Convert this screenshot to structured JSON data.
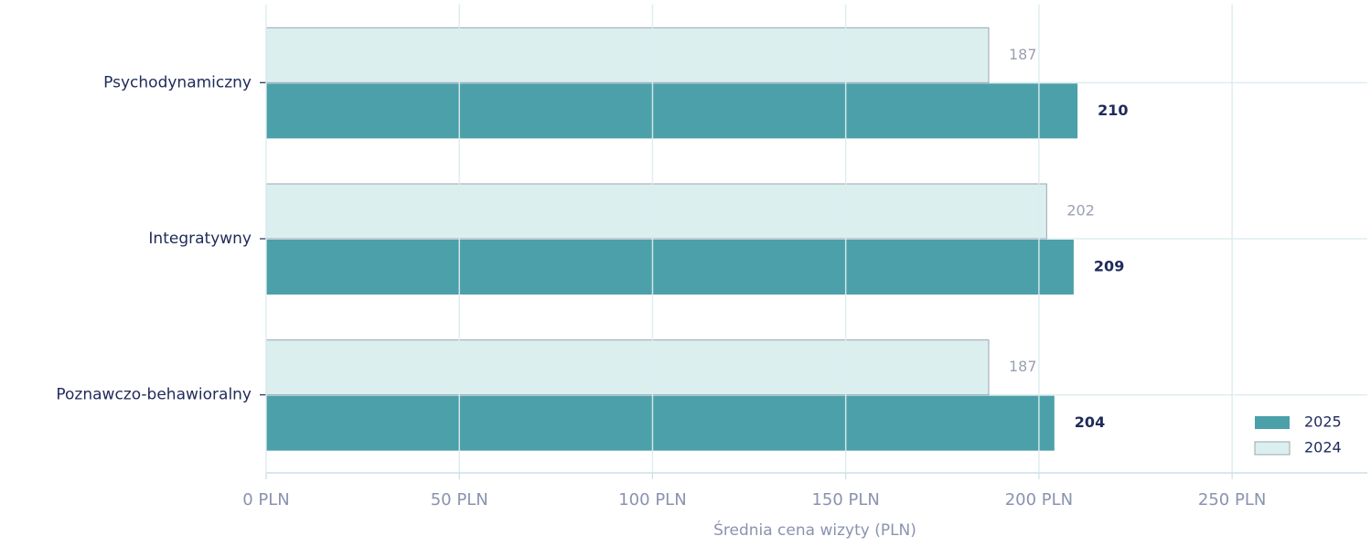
{
  "chart_data": {
    "type": "barh",
    "x_label": "Średnia cena wizyty (PLN)",
    "categories": [
      "Psychodynamiczny",
      "Integratywny",
      "Poznawczo-behawioralny"
    ],
    "series": [
      {
        "name": "2025",
        "color": "#4ca0a9",
        "values": [
          210,
          209,
          204
        ]
      },
      {
        "name": "2024",
        "color": "#dcefef",
        "values": [
          187,
          202,
          187
        ]
      }
    ],
    "xlim": [
      0,
      285
    ],
    "xticks": [
      {
        "value": 0,
        "label": "0 PLN"
      },
      {
        "value": 50,
        "label": "50 PLN"
      },
      {
        "value": 100,
        "label": "100 PLN"
      },
      {
        "value": 150,
        "label": "150 PLN"
      },
      {
        "value": 200,
        "label": "200 PLN"
      },
      {
        "value": 250,
        "label": "250 PLN"
      }
    ],
    "grid": true,
    "legend": "lower right"
  }
}
